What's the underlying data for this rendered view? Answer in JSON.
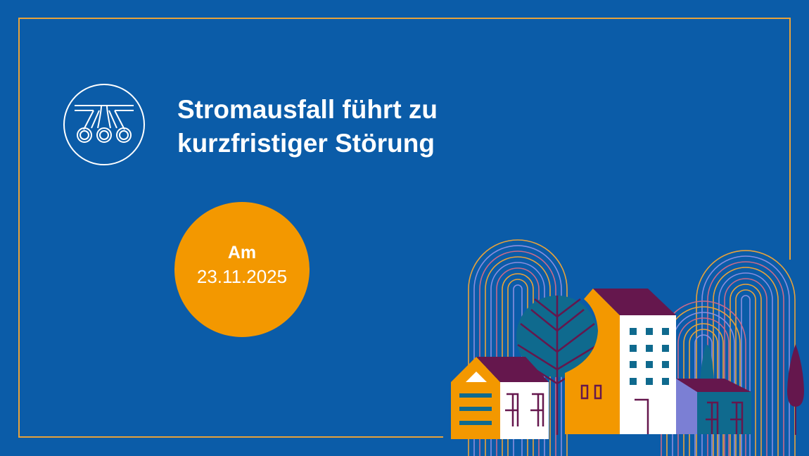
{
  "title": {
    "line1": "Stromausfall führt zu",
    "line2": "kurzfristiger Störung"
  },
  "badge": {
    "prefix": "Am",
    "date": "23.11.2025"
  },
  "colors": {
    "background": "#0b5ca8",
    "accent_orange": "#f39800",
    "frame": "#e8a23a",
    "purple": "#65174d",
    "teal": "#0f6a8e",
    "lavender": "#7b7fd4"
  },
  "icons": {
    "logo": "tram-logo-icon"
  }
}
